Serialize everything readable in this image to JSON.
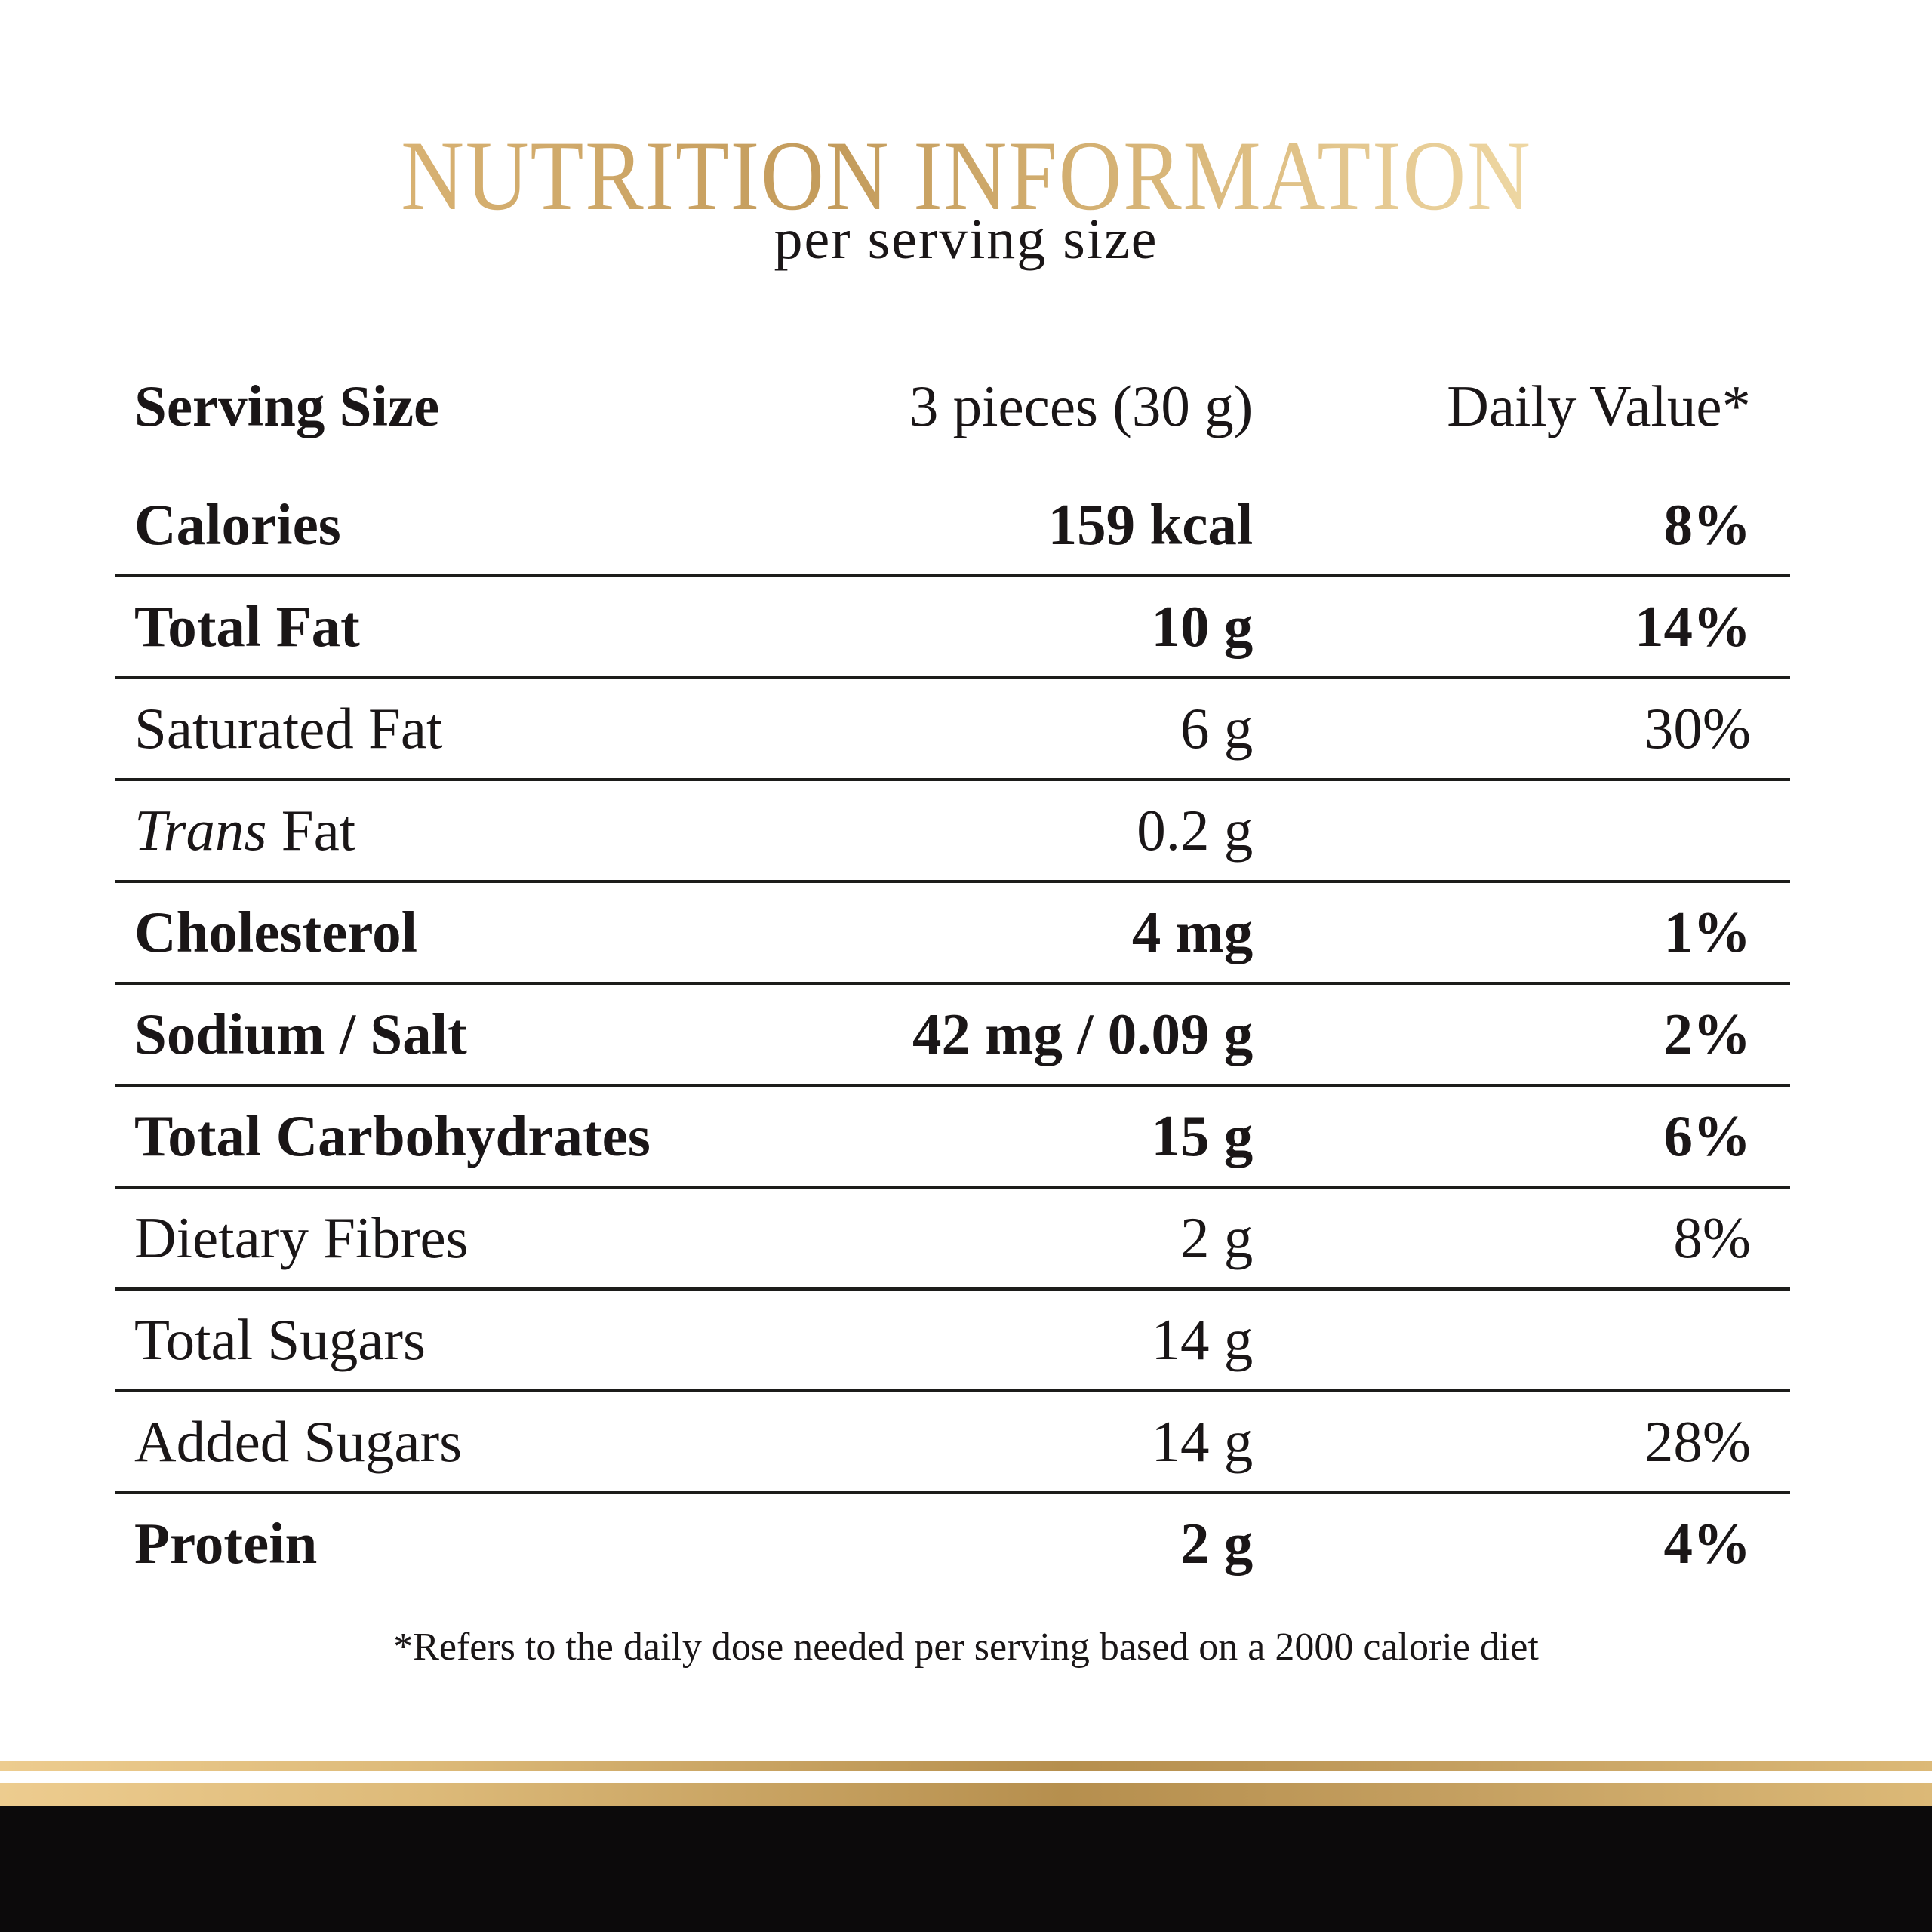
{
  "title": "NUTRITION INFORMATION",
  "subtitle": "per serving size",
  "table": {
    "header": {
      "label": "Serving Size",
      "value": "3 pieces (30 g)",
      "daily_value": "Daily Value*"
    },
    "rows": [
      {
        "label": "Calories",
        "value": "159 kcal",
        "daily_value": "8%",
        "bold": true
      },
      {
        "label": "Total Fat",
        "value": "10 g",
        "daily_value": "14%",
        "bold": true
      },
      {
        "label": "Saturated Fat",
        "value": "6 g",
        "daily_value": "30%",
        "bold": false
      },
      {
        "label_italic": "Trans",
        "label": " Fat",
        "value": "0.2 g",
        "daily_value": "",
        "bold": false
      },
      {
        "label": "Cholesterol",
        "value": "4 mg",
        "daily_value": "1%",
        "bold": true
      },
      {
        "label": "Sodium / Salt",
        "value": "42 mg / 0.09 g",
        "daily_value": "2%",
        "bold": true
      },
      {
        "label": "Total Carbohydrates",
        "value": "15 g",
        "daily_value": "6%",
        "bold": true
      },
      {
        "label": "Dietary Fibres",
        "value": "2 g",
        "daily_value": "8%",
        "bold": false
      },
      {
        "label": "Total Sugars",
        "value": "14 g",
        "daily_value": "",
        "bold": false
      },
      {
        "label": "Added Sugars",
        "value": "14 g",
        "daily_value": "28%",
        "bold": false
      },
      {
        "label": "Protein",
        "value": "2 g",
        "daily_value": "4%",
        "bold": true
      }
    ]
  },
  "footnote": "*Refers to the daily dose needed per serving based on a 2000 calorie diet",
  "colors": {
    "text": "#1a1617",
    "rule": "#1c1c1a",
    "gold_light": "#edcc8f",
    "gold_mid": "#d8b273",
    "gold_dark": "#b68f4e",
    "title_gradient_start": "#d8b273",
    "title_gradient_end": "#eed7a3",
    "black_bar": "#0c0a0b"
  }
}
